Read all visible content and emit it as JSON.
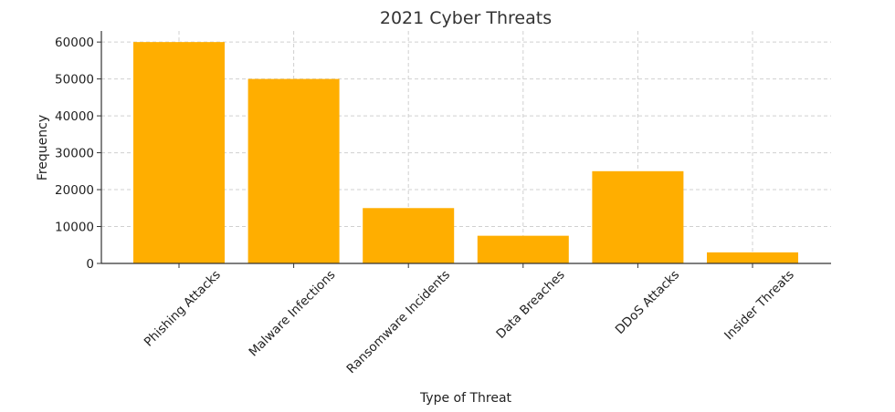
{
  "chart_data": {
    "type": "bar",
    "title": "2021 Cyber Threats",
    "xlabel": "Type of Threat",
    "ylabel": "Frequency",
    "categories": [
      "Phishing Attacks",
      "Malware Infections",
      "Ransomware Incidents",
      "Data Breaches",
      "DDoS Attacks",
      "Insider Threats"
    ],
    "values": [
      60000,
      50000,
      15000,
      7500,
      25000,
      3000
    ],
    "ylim": [
      0,
      63000
    ],
    "yticks": [
      0,
      10000,
      20000,
      30000,
      40000,
      50000,
      60000
    ],
    "grid": true,
    "bar_color": "#FFAE00",
    "legend": "none"
  }
}
